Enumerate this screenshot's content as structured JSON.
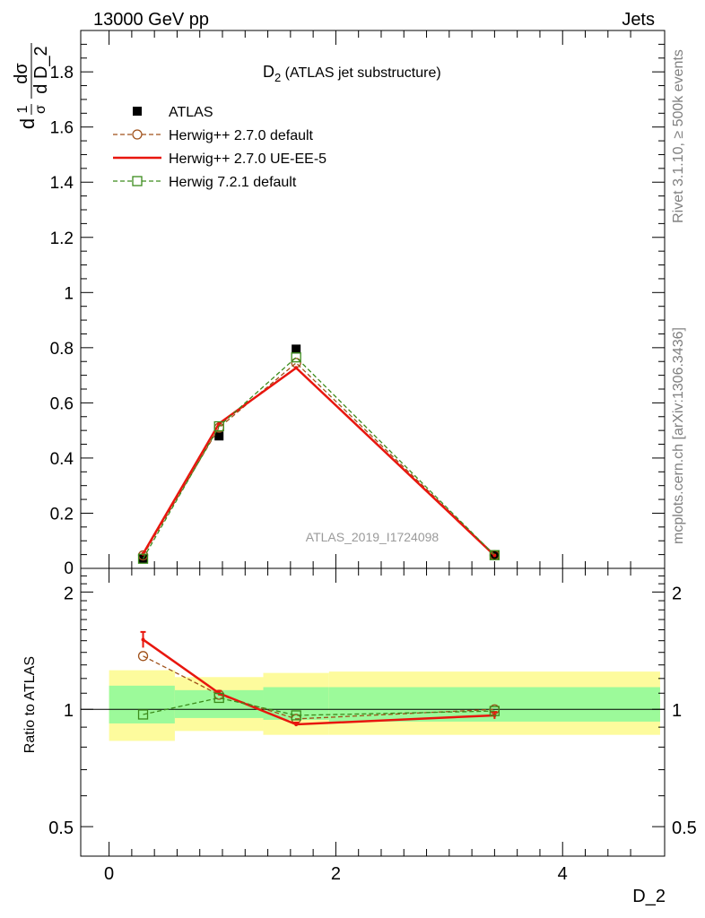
{
  "header": {
    "left": "13000 GeV pp",
    "right": "Jets"
  },
  "side_labels": {
    "rivet": "Rivet 3.1.10, ≥ 500k events",
    "mcplots": "mcplots.cern.ch [arXiv:1306.3436]"
  },
  "watermark": "ATLAS_2019_I1724098",
  "chart_data": [
    {
      "type": "line",
      "title_main": "D",
      "title_sub": "2",
      "title_rest": " (ATLAS jet substructure)",
      "ylabel_parts": {
        "one": "1",
        "sigma": "σ",
        "num": "dσ",
        "den": "d D_2",
        "d": "d"
      },
      "xlabel": "D_2",
      "xlim": [
        -0.25,
        4.9
      ],
      "ylim": [
        0,
        1.95
      ],
      "y_ticks": [
        0.2,
        0.4,
        0.6,
        0.8,
        1,
        1.2,
        1.4,
        1.6,
        1.8
      ],
      "y_tick_labels": [
        "0.2",
        "0.4",
        "0.6",
        "0.8",
        "1",
        "1.2",
        "1.4",
        "1.6",
        "1.8"
      ],
      "y_zero_label": "0",
      "legend": [
        {
          "label": "ATLAS",
          "style": "data",
          "color": "#000000"
        },
        {
          "label": "Herwig++ 2.7.0 default",
          "style": "dashed-circle",
          "color": "#a0521b"
        },
        {
          "label": "Herwig++ 2.7.0 UE-EE-5",
          "style": "solid",
          "color": "#e8160e"
        },
        {
          "label": "Herwig 7.2.1 default",
          "style": "dashed-square",
          "color": "#3c8c1c"
        }
      ],
      "data": {
        "name": "ATLAS",
        "x": [
          0.3,
          0.97,
          1.65,
          3.4
        ],
        "y": [
          0.035,
          0.48,
          0.795,
          0.048
        ]
      },
      "series": [
        {
          "name": "Herwig++ 2.7.0 default",
          "x": [
            0.3,
            0.97,
            1.65,
            3.4
          ],
          "y": [
            0.047,
            0.51,
            0.745,
            0.048
          ]
        },
        {
          "name": "Herwig++ 2.7.0 UE-EE-5",
          "x": [
            0.3,
            0.97,
            1.65,
            3.4
          ],
          "y": [
            0.053,
            0.525,
            0.727,
            0.047
          ]
        },
        {
          "name": "Herwig 7.2.1 default",
          "x": [
            0.3,
            0.97,
            1.65,
            3.4
          ],
          "y": [
            0.035,
            0.515,
            0.765,
            0.048
          ]
        }
      ]
    },
    {
      "type": "line",
      "ylabel": "Ratio to ATLAS",
      "xlabel": "D_2",
      "scale": "log",
      "xlim": [
        -0.25,
        4.9
      ],
      "ylim": [
        0.42,
        2.3
      ],
      "y_ticks": [
        0.5,
        1,
        2
      ],
      "y_tick_labels": [
        "0.5",
        "1",
        "2"
      ],
      "x_ticks": [
        0,
        2,
        4
      ],
      "x_tick_labels": [
        "0",
        "2",
        "4"
      ],
      "bands": {
        "bins": [
          [
            0.0,
            0.58
          ],
          [
            0.58,
            1.36
          ],
          [
            1.36,
            1.94
          ],
          [
            1.94,
            4.86
          ]
        ],
        "yellow": [
          [
            0.83,
            1.26
          ],
          [
            0.88,
            1.21
          ],
          [
            0.86,
            1.24
          ],
          [
            0.86,
            1.25
          ]
        ],
        "green": [
          [
            0.92,
            1.15
          ],
          [
            0.95,
            1.12
          ],
          [
            0.94,
            1.14
          ],
          [
            0.93,
            1.14
          ]
        ]
      },
      "series": [
        {
          "name": "Herwig++ 2.7.0 default",
          "x": [
            0.3,
            0.97,
            1.65,
            3.4
          ],
          "y": [
            1.37,
            1.09,
            0.945,
            1.0
          ]
        },
        {
          "name": "Herwig++ 2.7.0 UE-EE-5",
          "x": [
            0.3,
            0.97,
            1.65,
            3.4
          ],
          "y": [
            1.51,
            1.1,
            0.915,
            0.965
          ],
          "err": [
            0.07,
            0.015,
            0.01,
            0.02
          ]
        },
        {
          "name": "Herwig 7.2.1 default",
          "x": [
            0.3,
            0.97,
            1.65,
            3.4
          ],
          "y": [
            0.97,
            1.07,
            0.965,
            0.99
          ]
        }
      ]
    }
  ],
  "colors": {
    "yellow_band": "#fdfb9d",
    "green_band": "#9cfa9a",
    "watermark": "#9a9a9a",
    "side_text": "#808080"
  }
}
